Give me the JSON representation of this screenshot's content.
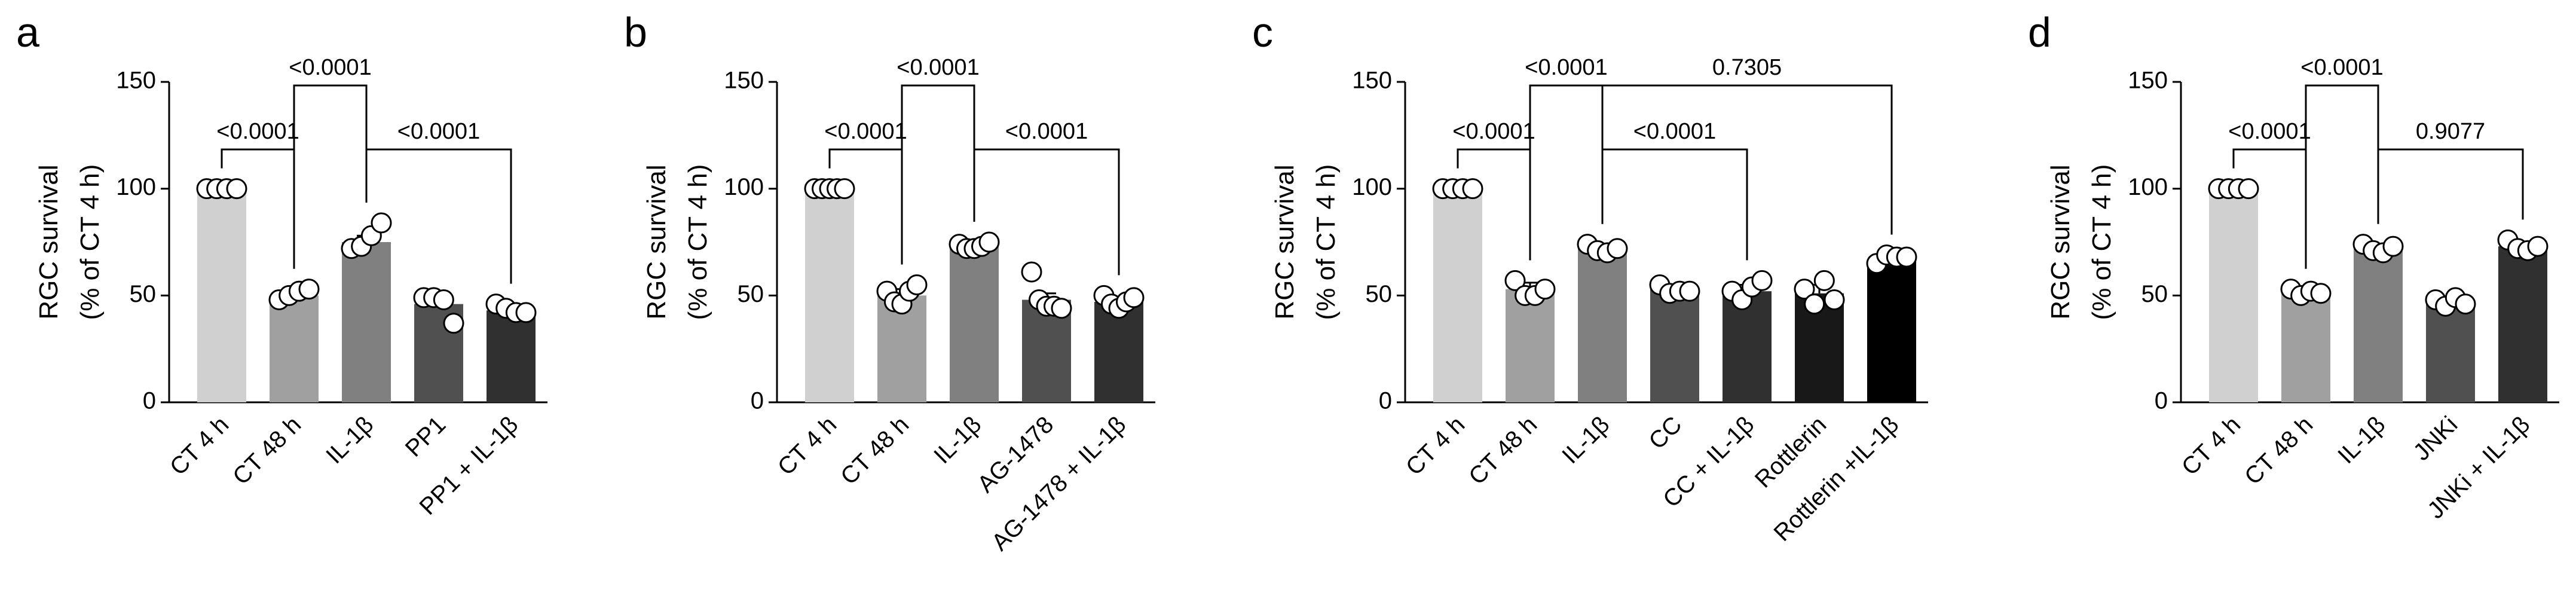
{
  "chart_data": [
    {
      "type": "bar",
      "panel": "a",
      "ylabel": [
        "RGC survival",
        "(% of CT 4 h)"
      ],
      "ylim": [
        0,
        150
      ],
      "yticks": [
        0,
        50,
        100,
        150
      ],
      "categories": [
        "CT 4 h",
        "CT 48 h",
        "IL-1β",
        "PP1",
        "PP1 + IL-1β"
      ],
      "colors": [
        "#d0d0d0",
        "#a0a0a0",
        "#808080",
        "#505050",
        "#303030"
      ],
      "values": [
        100,
        50,
        75,
        46,
        43
      ],
      "errors": [
        0,
        2,
        3,
        3,
        2
      ],
      "points": [
        [
          100,
          100,
          100,
          100
        ],
        [
          48,
          50,
          52,
          53
        ],
        [
          72,
          73,
          78,
          84
        ],
        [
          49,
          49,
          48,
          37
        ],
        [
          46,
          44,
          42,
          42
        ]
      ],
      "brackets": [
        {
          "from": 0,
          "to": 1,
          "label": "<0.0001"
        },
        {
          "from": 2,
          "to": 4,
          "label": "<0.0001"
        },
        {
          "from": 1,
          "to": 2,
          "label": "<0.0001"
        }
      ]
    },
    {
      "type": "bar",
      "panel": "b",
      "ylabel": [
        "RGC survival",
        "(% of CT 4 h)"
      ],
      "ylim": [
        0,
        150
      ],
      "yticks": [
        0,
        50,
        100,
        150
      ],
      "categories": [
        "CT 4 h",
        "CT 48 h",
        "IL-1β",
        "AG-1478",
        "AG-1478 + IL-1β"
      ],
      "colors": [
        "#d0d0d0",
        "#a0a0a0",
        "#808080",
        "#505050",
        "#303030"
      ],
      "values": [
        100,
        50,
        73,
        48,
        47
      ],
      "errors": [
        0,
        3,
        2,
        3,
        2
      ],
      "points": [
        [
          100,
          100,
          100,
          100,
          100
        ],
        [
          52,
          47,
          46,
          52,
          55
        ],
        [
          74,
          72,
          72,
          73,
          75
        ],
        [
          61,
          48,
          45,
          45,
          44
        ],
        [
          50,
          46,
          44,
          47,
          49
        ]
      ],
      "brackets": [
        {
          "from": 0,
          "to": 1,
          "label": "<0.0001"
        },
        {
          "from": 2,
          "to": 4,
          "label": "<0.0001"
        },
        {
          "from": 1,
          "to": 2,
          "label": "<0.0001"
        }
      ]
    },
    {
      "type": "bar",
      "panel": "c",
      "ylabel": [
        "RGC survival",
        "(% of CT 4 h)"
      ],
      "ylim": [
        0,
        150
      ],
      "yticks": [
        0,
        50,
        100,
        150
      ],
      "categories": [
        "CT 4 h",
        "CT 48 h",
        "IL-1β",
        "CC",
        "CC + IL-1β",
        "Rottlerin",
        "Rottlerin +IL-1β"
      ],
      "colors": [
        "#d0d0d0",
        "#a0a0a0",
        "#808080",
        "#505050",
        "#303030",
        "#181818",
        "#000000"
      ],
      "values": [
        100,
        53,
        72,
        53,
        52,
        51,
        67
      ],
      "errors": [
        0,
        3,
        2,
        1,
        3,
        4,
        2
      ],
      "points": [
        [
          100,
          100,
          100,
          100
        ],
        [
          57,
          50,
          50,
          53
        ],
        [
          74,
          71,
          70,
          72
        ],
        [
          55,
          51,
          52,
          52
        ],
        [
          52,
          48,
          54,
          57
        ],
        [
          53,
          46,
          57,
          48
        ],
        [
          65,
          69,
          68,
          68
        ]
      ],
      "brackets": [
        {
          "from": 0,
          "to": 1,
          "label": "<0.0001"
        },
        {
          "from": 2,
          "to": 4,
          "label": "<0.0001"
        },
        {
          "from": 2,
          "to": 6,
          "label": "0.7305"
        },
        {
          "from": 1,
          "to": 2,
          "label": "<0.0001"
        }
      ]
    },
    {
      "type": "bar",
      "panel": "d",
      "ylabel": [
        "RGC survival",
        "(% of CT 4 h)"
      ],
      "ylim": [
        0,
        150
      ],
      "yticks": [
        0,
        50,
        100,
        150
      ],
      "categories": [
        "CT 4 h",
        "CT 48 h",
        "IL-1β",
        "JNKi",
        "JNKi + IL-1β"
      ],
      "colors": [
        "#d0d0d0",
        "#a0a0a0",
        "#808080",
        "#505050",
        "#303030"
      ],
      "values": [
        100,
        51,
        72,
        47,
        73
      ],
      "errors": [
        0,
        2,
        2,
        1,
        2
      ],
      "points": [
        [
          100,
          100,
          100,
          100
        ],
        [
          53,
          50,
          52,
          51
        ],
        [
          74,
          71,
          70,
          73
        ],
        [
          48,
          45,
          49,
          46
        ],
        [
          76,
          72,
          71,
          73
        ]
      ],
      "brackets": [
        {
          "from": 0,
          "to": 1,
          "label": "<0.0001"
        },
        {
          "from": 2,
          "to": 4,
          "label": "0.9077"
        },
        {
          "from": 1,
          "to": 2,
          "label": "<0.0001"
        }
      ]
    }
  ]
}
